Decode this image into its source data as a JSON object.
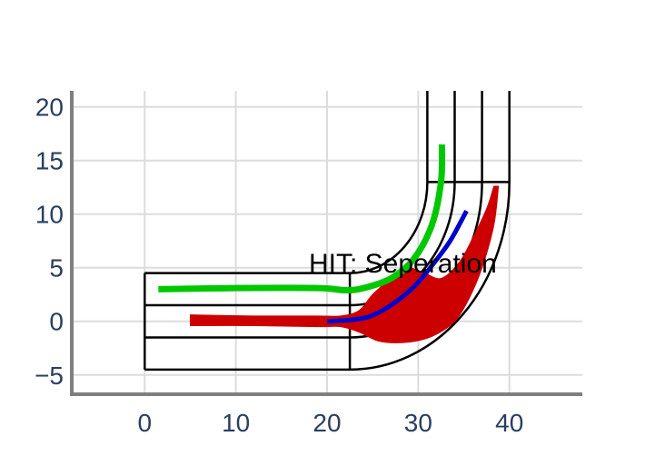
{
  "chart_data": {
    "type": "line",
    "title": "",
    "xlabel": "",
    "ylabel": "",
    "xlim": [
      -8,
      48
    ],
    "ylim": [
      -6.8,
      21.5
    ],
    "grid": true,
    "x_ticks": [
      0,
      10,
      20,
      30,
      40
    ],
    "x_tick_labels": [
      "0",
      "10",
      "20",
      "30",
      "40"
    ],
    "y_ticks": [
      -5,
      0,
      5,
      10,
      15,
      20
    ],
    "y_tick_labels": [
      "−5",
      "0",
      "5",
      "10",
      "15",
      "20"
    ],
    "annotations": [
      {
        "text": "HIT: Seperation",
        "x": 20.2,
        "y": 5.5
      }
    ],
    "colors": {
      "green": "#00c800",
      "blue": "#0000cc",
      "red": "#cc0000",
      "frame": "#000000"
    },
    "geometry": {
      "channel_lines_y": [
        4.5,
        1.5,
        -1.5,
        -4.5
      ],
      "straight_x": [
        0,
        22.5
      ],
      "vertical_lines_x": [
        31,
        34,
        37,
        40
      ],
      "bend_center": [
        22.5,
        13
      ],
      "turn_y": 13,
      "top_y": 21.5
    },
    "series": [
      {
        "color": "#00c800",
        "width": 7,
        "points": [
          [
            1.5,
            3
          ],
          [
            10,
            3.1
          ],
          [
            19,
            3.1
          ],
          [
            22,
            2.9
          ],
          [
            24,
            3.1
          ],
          [
            27,
            4
          ],
          [
            29.5,
            5.8
          ],
          [
            31.5,
            9
          ],
          [
            32.5,
            13
          ],
          [
            32.6,
            16.5
          ]
        ]
      },
      {
        "color": "#0000cc",
        "width": 5,
        "points": [
          [
            20,
            0
          ],
          [
            22,
            0.1
          ],
          [
            24.5,
            0.4
          ],
          [
            27,
            1.5
          ],
          [
            29.5,
            3.2
          ],
          [
            31.5,
            5.2
          ],
          [
            33.5,
            7.5
          ],
          [
            35.3,
            10.3
          ]
        ]
      }
    ],
    "bands": [
      {
        "color": "#cc0000",
        "upper": [
          [
            5,
            0.6
          ],
          [
            12,
            0.5
          ],
          [
            19,
            0.5
          ],
          [
            21.5,
            0.5
          ],
          [
            23.5,
            1
          ],
          [
            25,
            2.5
          ],
          [
            27,
            4
          ],
          [
            28.5,
            5
          ],
          [
            30.5,
            4.6
          ],
          [
            32.5,
            4
          ],
          [
            34.5,
            5.5
          ],
          [
            36,
            7.8
          ],
          [
            37.5,
            10.5
          ],
          [
            38.3,
            12.6
          ]
        ],
        "lower": [
          [
            5,
            -0.4
          ],
          [
            12,
            -0.4
          ],
          [
            19,
            -0.5
          ],
          [
            21.5,
            -0.5
          ],
          [
            23.5,
            -1
          ],
          [
            25.5,
            -1.8
          ],
          [
            27.5,
            -2
          ],
          [
            30,
            -1.8
          ],
          [
            32,
            -1.2
          ],
          [
            34,
            0
          ],
          [
            35.5,
            2
          ],
          [
            37,
            5
          ],
          [
            38.3,
            9
          ],
          [
            38.8,
            12.6
          ]
        ]
      }
    ]
  }
}
